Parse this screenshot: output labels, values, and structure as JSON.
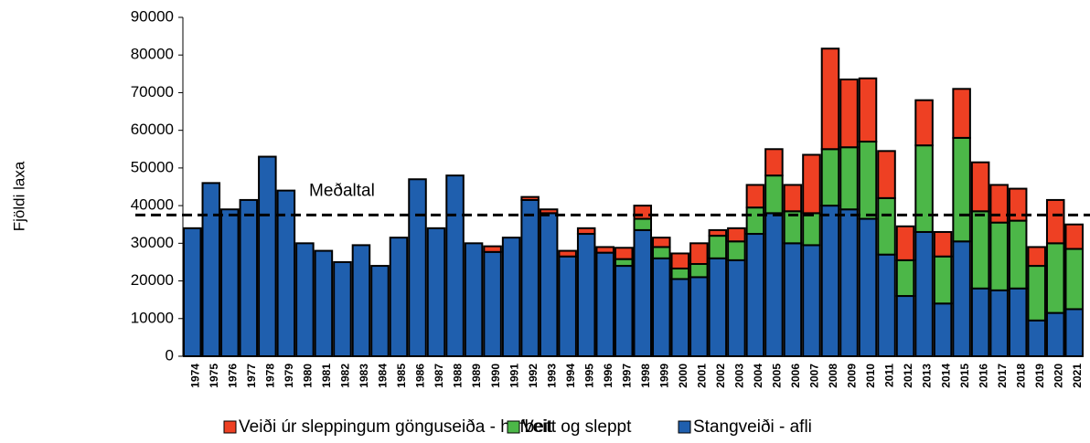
{
  "chart_data": {
    "type": "stacked_bar",
    "y_label": "Fjöldi laxa",
    "categories": [
      "1974",
      "1975",
      "1976",
      "1977",
      "1978",
      "1979",
      "1980",
      "1981",
      "1982",
      "1983",
      "1984",
      "1985",
      "1986",
      "1987",
      "1988",
      "1989",
      "1990",
      "1991",
      "1992",
      "1993",
      "1994",
      "1995",
      "1996",
      "1997",
      "1998",
      "1999",
      "2000",
      "2001",
      "2002",
      "2003",
      "2004",
      "2005",
      "2006",
      "2007",
      "2008",
      "2009",
      "2010",
      "2011",
      "2012",
      "2013",
      "2014",
      "2015",
      "2016",
      "2017",
      "2018",
      "2019",
      "2020",
      "2021"
    ],
    "series": [
      {
        "name": "Stangveiði - afli",
        "color": "#1f5fae",
        "values": [
          34000,
          46000,
          39000,
          41500,
          53000,
          44000,
          30000,
          28000,
          25000,
          29500,
          24000,
          31500,
          47000,
          34000,
          48000,
          30000,
          27700,
          31500,
          41500,
          38000,
          26500,
          32500,
          27500,
          24000,
          33500,
          26000,
          20500,
          21000,
          26000,
          25500,
          32500,
          38000,
          30000,
          29500,
          40000,
          39000,
          36500,
          27000,
          16000,
          33000,
          14000,
          30500,
          18000,
          17500,
          18000,
          9500,
          11500,
          12500
        ]
      },
      {
        "name": "Veitt og sleppt",
        "color": "#4cb748",
        "values": [
          0,
          0,
          0,
          0,
          0,
          0,
          0,
          0,
          0,
          0,
          0,
          0,
          0,
          0,
          0,
          0,
          0,
          0,
          0,
          0,
          0,
          0,
          0,
          1800,
          3000,
          3000,
          2800,
          3500,
          6000,
          5000,
          7000,
          10000,
          8500,
          8500,
          15000,
          16500,
          20500,
          15000,
          9500,
          23000,
          12500,
          27500,
          20500,
          18000,
          18000,
          14500,
          18500,
          16000
        ]
      },
      {
        "name": "Veiði úr sleppingum gönguseiða - hafbeit",
        "color": "#ee4023",
        "values": [
          0,
          0,
          0,
          0,
          0,
          0,
          0,
          0,
          0,
          0,
          0,
          0,
          0,
          0,
          0,
          0,
          1500,
          0,
          800,
          1000,
          1500,
          1500,
          1500,
          3000,
          3500,
          2500,
          4000,
          5500,
          1500,
          3500,
          6000,
          7000,
          7000,
          15500,
          26700,
          18000,
          16800,
          12500,
          9000,
          12000,
          6500,
          13000,
          13000,
          10000,
          8500,
          5000,
          11500,
          6500
        ]
      }
    ],
    "mean": {
      "label": "Meðaltal",
      "value": 37500
    },
    "ylim": [
      0,
      90000
    ],
    "yticks": [
      0,
      10000,
      20000,
      30000,
      40000,
      50000,
      60000,
      70000,
      80000,
      90000
    ]
  }
}
